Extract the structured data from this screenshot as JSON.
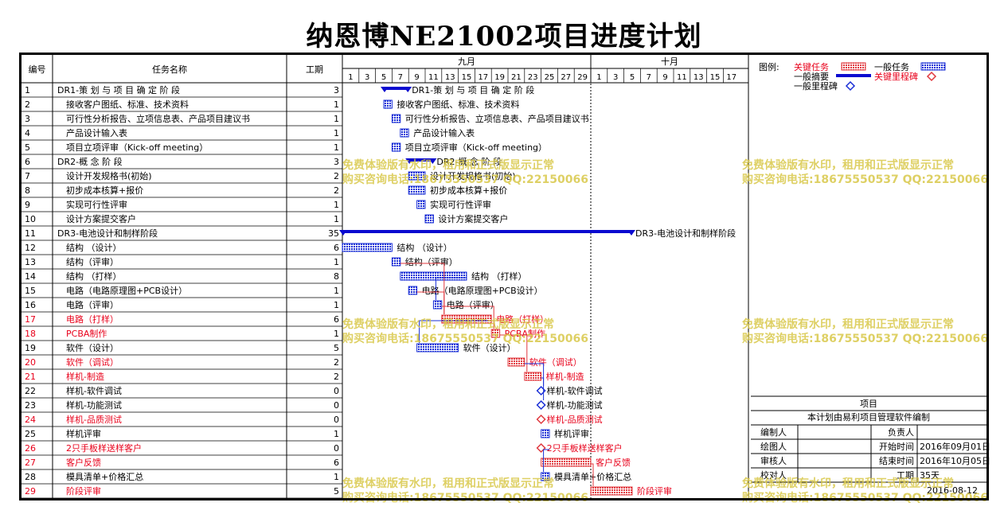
{
  "title": "纳恩博NE21002项目进度计划",
  "header": {
    "col_id": "编号",
    "col_name": "任务名称",
    "col_dur": "工期"
  },
  "months": [
    {
      "label": "九月",
      "days": [
        1,
        3,
        5,
        7,
        9,
        11,
        13,
        15,
        17,
        19,
        21,
        23,
        25,
        27,
        29
      ]
    },
    {
      "label": "十月",
      "days": [
        1,
        3,
        5,
        7,
        9,
        11,
        13,
        15,
        17
      ]
    }
  ],
  "legend": {
    "title": "图例:",
    "critical": "关键任务",
    "normal": "一般任务",
    "summary": "一般摘要",
    "critical_milestone": "关键里程碑",
    "milestone": "一般里程碑"
  },
  "colors": {
    "normal": "#1a2fd6",
    "critical": "#e0383e",
    "summary": "#0a0ad0",
    "connector": "#1a2fd6"
  },
  "info": {
    "project_label": "项目",
    "note": "本计划由易利项目管理软件编制",
    "rows": [
      [
        "编制人",
        "",
        "负责人",
        ""
      ],
      [
        "绘图人",
        "",
        "开始时间",
        "2016年09月01日"
      ],
      [
        "审核人",
        "",
        "结束时间",
        "2016年10月05日"
      ],
      [
        "校对人",
        "",
        "工期",
        "35天"
      ]
    ],
    "date": "2016-08-12"
  },
  "watermark": {
    "line1": "免费体验版有水印，租用和正式版显示正常",
    "line2": "购买咨询电话:18675550537 QQ:22150066"
  },
  "chart_data": {
    "type": "gantt",
    "title": "纳恩博NE21002项目进度计划",
    "x_unit": "day",
    "x_range": [
      "2016-09-01",
      "2016-10-18"
    ],
    "tasks": [
      {
        "id": "1",
        "name": "DR1-策 划 与 项 目 确 定 阶 段",
        "duration": "3",
        "start": 6,
        "end": 8,
        "kind": "summary",
        "critical": false
      },
      {
        "id": "2",
        "name": "接收客户图纸、标准、技术资料",
        "duration": "1",
        "start": 6,
        "end": 6,
        "kind": "task",
        "critical": false
      },
      {
        "id": "3",
        "name": "可行性分析报告、立项信息表、产品项目建议书",
        "duration": "1",
        "start": 7,
        "end": 7,
        "kind": "task",
        "critical": false
      },
      {
        "id": "4",
        "name": "产品设计输入表",
        "duration": "1",
        "start": 8,
        "end": 8,
        "kind": "task",
        "critical": false
      },
      {
        "id": "5",
        "name": "项目立项评审（Kick-off meeting）",
        "duration": "1",
        "start": 7,
        "end": 7,
        "kind": "task",
        "critical": false
      },
      {
        "id": "6",
        "name": "DR2-概 念 阶 段",
        "duration": "3",
        "start": 9,
        "end": 11,
        "kind": "summary",
        "critical": false
      },
      {
        "id": "7",
        "name": "设计开发规格书(初始)",
        "duration": "2",
        "start": 9,
        "end": 10,
        "kind": "task",
        "critical": false
      },
      {
        "id": "8",
        "name": "初步成本核算+报价",
        "duration": "2",
        "start": 9,
        "end": 10,
        "kind": "task",
        "critical": false
      },
      {
        "id": "9",
        "name": "实现可行性评审",
        "duration": "1",
        "start": 10,
        "end": 10,
        "kind": "task",
        "critical": false
      },
      {
        "id": "10",
        "name": "设计方案提交客户",
        "duration": "1",
        "start": 11,
        "end": 11,
        "kind": "task",
        "critical": false
      },
      {
        "id": "11",
        "name": "DR3-电池设计和制样阶段",
        "duration": "35",
        "start": 1,
        "end": 35,
        "kind": "summary",
        "critical": false
      },
      {
        "id": "12",
        "name": "结构 （设计）",
        "duration": "6",
        "start": 1,
        "end": 6,
        "kind": "task",
        "critical": false
      },
      {
        "id": "13",
        "name": "结构（评审）",
        "duration": "1",
        "start": 7,
        "end": 7,
        "kind": "task",
        "critical": false
      },
      {
        "id": "14",
        "name": "结构 （打样）",
        "duration": "8",
        "start": 8,
        "end": 15,
        "kind": "task",
        "critical": false
      },
      {
        "id": "15",
        "name": "电路（电路原理图+PCB设计）",
        "duration": "1",
        "start": 9,
        "end": 9,
        "kind": "task",
        "critical": false
      },
      {
        "id": "16",
        "name": "电路（评审）",
        "duration": "1",
        "start": 12,
        "end": 12,
        "kind": "task",
        "critical": false
      },
      {
        "id": "17",
        "name": "电路（打样）",
        "duration": "6",
        "start": 13,
        "end": 18,
        "kind": "task",
        "critical": true
      },
      {
        "id": "18",
        "name": "PCBA制作",
        "duration": "1",
        "start": 19,
        "end": 19,
        "kind": "task",
        "critical": true
      },
      {
        "id": "19",
        "name": "软件（设计）",
        "duration": "5",
        "start": 10,
        "end": 14,
        "kind": "task",
        "critical": false
      },
      {
        "id": "20",
        "name": "软件（调试）",
        "duration": "2",
        "start": 21,
        "end": 22,
        "kind": "task",
        "critical": true
      },
      {
        "id": "21",
        "name": "样机-制造",
        "duration": "2",
        "start": 23,
        "end": 24,
        "kind": "task",
        "critical": true
      },
      {
        "id": "22",
        "name": "样机-软件调试",
        "duration": "0",
        "start": 25,
        "end": 25,
        "kind": "milestone",
        "critical": false
      },
      {
        "id": "23",
        "name": "样机-功能测试",
        "duration": "0",
        "start": 25,
        "end": 25,
        "kind": "milestone",
        "critical": false
      },
      {
        "id": "24",
        "name": "样机-品质测试",
        "duration": "0",
        "start": 25,
        "end": 25,
        "kind": "milestone",
        "critical": true
      },
      {
        "id": "25",
        "name": "样机评审",
        "duration": "1",
        "start": 25,
        "end": 25,
        "kind": "task",
        "critical": false
      },
      {
        "id": "26",
        "name": "2只手板样送样客户",
        "duration": "0",
        "start": 25,
        "end": 25,
        "kind": "milestone",
        "critical": true
      },
      {
        "id": "27",
        "name": "客户反馈",
        "duration": "6",
        "start": 25,
        "end": 30,
        "kind": "task",
        "critical": true
      },
      {
        "id": "28",
        "name": "模具清单+价格汇总",
        "duration": "1",
        "start": 25,
        "end": 25,
        "kind": "task",
        "critical": false
      },
      {
        "id": "29",
        "name": "阶段评审",
        "duration": "5",
        "start": 31,
        "end": 35,
        "kind": "task",
        "critical": true
      }
    ]
  }
}
